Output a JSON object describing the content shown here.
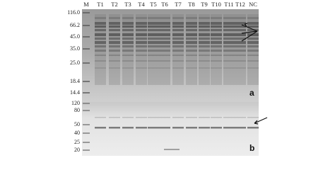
{
  "lanes": [
    "M",
    "T1",
    "T2",
    "T3",
    "T4",
    "T5",
    "T6",
    "T7",
    "T8",
    "T9",
    "T10",
    "T11",
    "T12",
    "NC"
  ],
  "panel_a": {
    "label": "a",
    "markers": [
      "116.0",
      "66.2",
      "45.0",
      "35.0",
      "25.0",
      "18.4",
      "14.4"
    ]
  },
  "panel_b": {
    "label": "b",
    "markers": [
      "120",
      "80",
      "50",
      "40",
      "25",
      "20"
    ]
  }
}
